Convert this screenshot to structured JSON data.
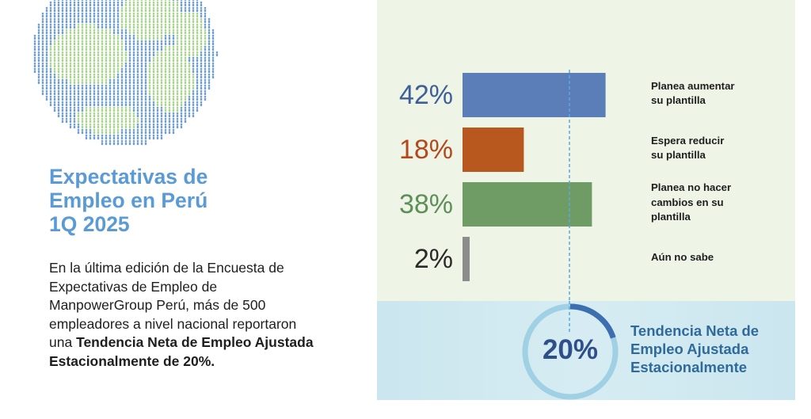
{
  "heading": {
    "line1": "Expectativas de",
    "line2": "Empleo en Perú",
    "line3": "1Q 2025"
  },
  "body": {
    "text_plain": "En la última edición de la Encuesta de Expectativas de Empleo de ManpowerGroup Perú, más de 500 empleadores a nivel nacional reportaron una ",
    "text_bold": "Tendencia Neta de Empleo Ajustada Estacionalmente de 20%."
  },
  "chart_data": {
    "type": "bar",
    "orientation": "horizontal",
    "categories": [
      "Planea aumentar su plantilla",
      "Espera reducir su plantilla",
      "Planea no hacer cambios en su plantilla",
      "Aún no sabe"
    ],
    "values": [
      42,
      18,
      38,
      2
    ],
    "value_labels": [
      "42%",
      "18%",
      "38%",
      "2%"
    ],
    "category_lines": [
      [
        "Planea aumentar",
        "su plantilla"
      ],
      [
        "Espera reducir",
        "su plantilla"
      ],
      [
        "Planea no hacer",
        "cambios en su",
        "plantilla"
      ],
      [
        "Aún no sabe"
      ]
    ],
    "colors": [
      "#5b7db8",
      "#b8581f",
      "#6e9c64",
      "#8c8c8c"
    ],
    "label_colors": [
      "#3f5f98",
      "#b4481b",
      "#5f8f59",
      "#2a2a2a"
    ],
    "reference_line_value": 20,
    "reference_line_color": "#5aa9df"
  },
  "net_employment": {
    "value": 20,
    "value_label": "20%",
    "title_line1": "Tendencia Neta de",
    "title_line2": "Empleo Ajustada",
    "title_line3": "Estacionalmente",
    "ring_color": "#3d6fb0",
    "ring_track_color": "#9fd0e4"
  },
  "globe_colors": {
    "water": "#6f9fd4",
    "land": "#a9d68e"
  }
}
